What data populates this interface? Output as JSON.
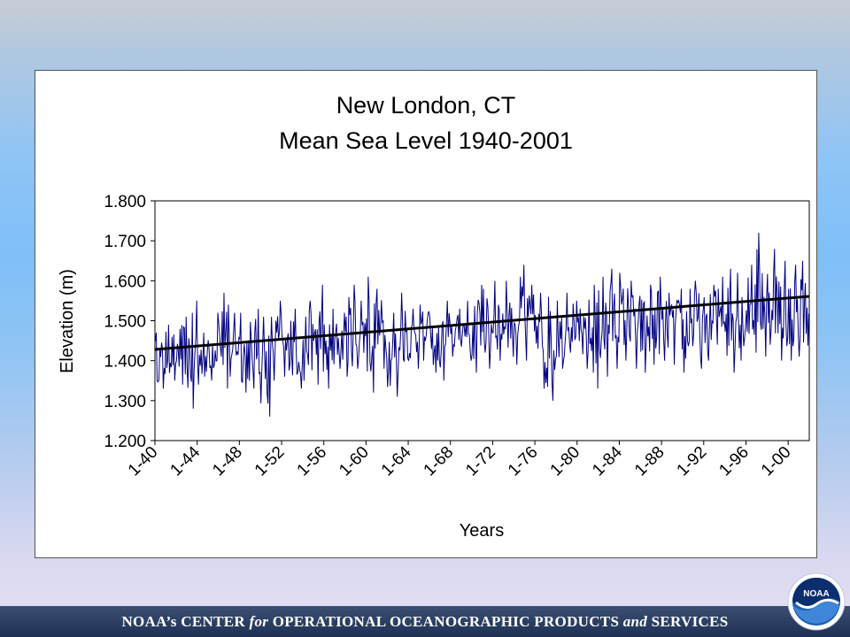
{
  "footer": {
    "part1": "NOAA’s CENTER ",
    "part2": "for",
    "part3": " OPERATIONAL OCEANOGRAPHIC PRODUCTS ",
    "part4": "and",
    "part5": " SERVICES"
  },
  "logo": {
    "label": "NOAA",
    "icon": "noaa-logo-icon"
  },
  "colors": {
    "series": "#000080",
    "trend": "#000000",
    "logo_blue": "#1f5fb0",
    "footer_bg": "#1e3154"
  },
  "chart_data": {
    "type": "line",
    "title": [
      "New London, CT",
      "Mean Sea Level 1940-2001"
    ],
    "xlabel": "Years",
    "ylabel": "Elevation (m)",
    "ylim": [
      1.2,
      1.8
    ],
    "yticks": [
      "1.800",
      "1.700",
      "1.600",
      "1.500",
      "1.400",
      "1.300",
      "1.200"
    ],
    "xticks": [
      "1-40",
      "1-44",
      "1-48",
      "1-52",
      "1-56",
      "1-60",
      "1-64",
      "1-68",
      "1-72",
      "1-76",
      "1-80",
      "1-84",
      "1-88",
      "1-92",
      "1-96",
      "1-00"
    ],
    "xlim": [
      "1940-01",
      "2001-12"
    ],
    "grid": false,
    "legend": "none",
    "series": [
      {
        "kind": "monthly mean",
        "annual_extremes": {
          "years": [
            1940,
            1941,
            1942,
            1943,
            1944,
            1945,
            1946,
            1947,
            1948,
            1949,
            1950,
            1951,
            1952,
            1953,
            1954,
            1955,
            1956,
            1957,
            1958,
            1959,
            1960,
            1961,
            1962,
            1963,
            1964,
            1965,
            1966,
            1967,
            1968,
            1969,
            1970,
            1971,
            1972,
            1973,
            1974,
            1975,
            1976,
            1977,
            1978,
            1979,
            1980,
            1981,
            1982,
            1983,
            1984,
            1985,
            1986,
            1987,
            1988,
            1989,
            1990,
            1991,
            1992,
            1993,
            1994,
            1995,
            1996,
            1997,
            1998,
            1999,
            2000,
            2001
          ],
          "high": [
            1.47,
            1.49,
            1.51,
            1.55,
            1.47,
            1.52,
            1.57,
            1.52,
            1.52,
            1.53,
            1.51,
            1.55,
            1.5,
            1.53,
            1.55,
            1.59,
            1.53,
            1.52,
            1.59,
            1.55,
            1.61,
            1.58,
            1.52,
            1.57,
            1.53,
            1.54,
            1.51,
            1.55,
            1.53,
            1.55,
            1.59,
            1.58,
            1.6,
            1.6,
            1.64,
            1.59,
            1.57,
            1.56,
            1.55,
            1.57,
            1.53,
            1.59,
            1.61,
            1.63,
            1.62,
            1.6,
            1.59,
            1.61,
            1.57,
            1.58,
            1.58,
            1.6,
            1.59,
            1.61,
            1.63,
            1.62,
            1.64,
            1.72,
            1.68,
            1.65,
            1.64,
            1.65
          ],
          "low": [
            1.33,
            1.35,
            1.34,
            1.28,
            1.34,
            1.35,
            1.33,
            1.36,
            1.32,
            1.33,
            1.26,
            1.35,
            1.36,
            1.33,
            1.35,
            1.34,
            1.33,
            1.38,
            1.36,
            1.38,
            1.32,
            1.38,
            1.31,
            1.37,
            1.38,
            1.4,
            1.37,
            1.35,
            1.41,
            1.4,
            1.37,
            1.38,
            1.4,
            1.41,
            1.39,
            1.4,
            1.33,
            1.3,
            1.38,
            1.42,
            1.38,
            1.33,
            1.36,
            1.38,
            1.4,
            1.38,
            1.37,
            1.39,
            1.4,
            1.39,
            1.37,
            1.38,
            1.4,
            1.44,
            1.37,
            1.4,
            1.42,
            1.41,
            1.44,
            1.4,
            1.4,
            1.41
          ]
        }
      },
      {
        "kind": "linear trend",
        "x": [
          "1940-01",
          "2001-12"
        ],
        "y": [
          1.428,
          1.561
        ]
      }
    ]
  }
}
